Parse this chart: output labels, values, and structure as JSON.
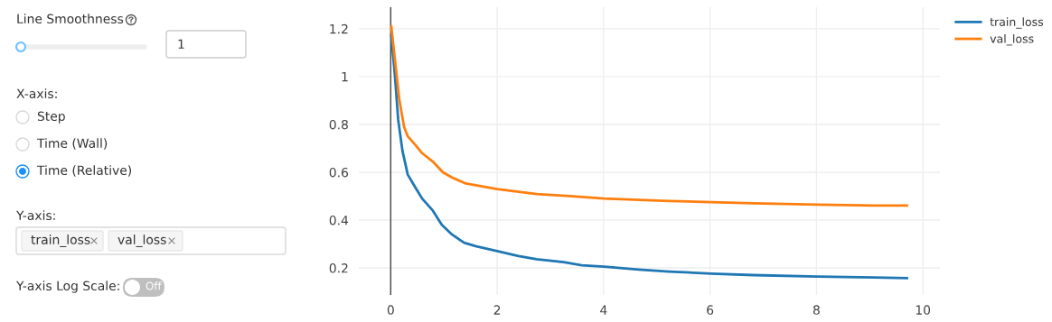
{
  "chart_data": [
    {
      "type": "other",
      "annotations": [
        "Line Smoothness",
        "1",
        "X-axis:",
        "Step",
        "Time (Wall)",
        "Time (Relative)",
        "Y-axis:",
        "train_loss",
        "val_loss",
        "Y-axis Log Scale:",
        "Off"
      ]
    },
    {
      "type": "line",
      "xlim": [
        -0.6,
        10.32
      ],
      "ylim": [
        0.087,
        1.29
      ],
      "xticks": [
        0,
        2,
        4,
        6,
        8,
        10
      ],
      "yticks": [
        0.2,
        0.4,
        0.6,
        0.8,
        1,
        1.2
      ],
      "grid": true,
      "legend": "top right",
      "ref_lines": [
        {
          "axis": "x",
          "value": 0,
          "color": "#444444"
        }
      ],
      "series": [
        {
          "name": "train_loss",
          "color": "#1f77b4",
          "x": [
            0.01,
            0.08,
            0.14,
            0.22,
            0.32,
            0.48,
            0.59,
            0.79,
            0.96,
            1.15,
            1.38,
            1.61,
            2.0,
            2.4,
            2.74,
            3.25,
            3.59,
            4.01,
            4.66,
            5.23,
            6.02,
            6.81,
            8.02,
            9.08,
            9.7
          ],
          "values": [
            1.175,
            1.0,
            0.82,
            0.69,
            0.59,
            0.53,
            0.49,
            0.44,
            0.38,
            0.34,
            0.305,
            0.29,
            0.27,
            0.25,
            0.236,
            0.224,
            0.211,
            0.205,
            0.193,
            0.185,
            0.176,
            0.17,
            0.164,
            0.16,
            0.157
          ]
        },
        {
          "name": "val_loss",
          "color": "#ff7f0e",
          "x": [
            0.01,
            0.08,
            0.16,
            0.25,
            0.32,
            0.48,
            0.59,
            0.79,
            0.98,
            1.15,
            1.41,
            2.0,
            2.74,
            3.36,
            4.01,
            5.23,
            6.02,
            6.81,
            8.02,
            9.08,
            9.7
          ],
          "values": [
            1.21,
            1.07,
            0.905,
            0.79,
            0.75,
            0.71,
            0.68,
            0.645,
            0.6,
            0.578,
            0.553,
            0.53,
            0.509,
            0.5,
            0.49,
            0.48,
            0.475,
            0.47,
            0.465,
            0.461,
            0.461
          ]
        }
      ]
    }
  ]
}
